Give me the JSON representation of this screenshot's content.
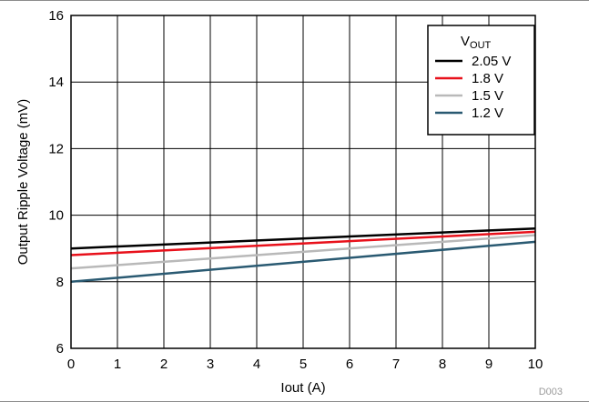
{
  "chart_data": {
    "type": "line",
    "xlabel": "Iout (A)",
    "ylabel": "Output Ripple Voltage (mV)",
    "xlim": [
      0,
      10
    ],
    "ylim": [
      6,
      16
    ],
    "xticks": [
      "0",
      "1",
      "2",
      "3",
      "4",
      "5",
      "6",
      "7",
      "8",
      "9",
      "10"
    ],
    "yticks": [
      "6",
      "8",
      "10",
      "12",
      "14",
      "16"
    ],
    "grid": true,
    "legend": {
      "title_main": "V",
      "title_sub": "OUT",
      "position": "top-right"
    },
    "series": [
      {
        "name": "2.05 V",
        "color": "#000000",
        "x": [
          0,
          10
        ],
        "y": [
          9.0,
          9.6
        ]
      },
      {
        "name": "1.8 V",
        "color": "#e8111b",
        "x": [
          0,
          10
        ],
        "y": [
          8.8,
          9.5
        ]
      },
      {
        "name": "1.5 V",
        "color": "#b9b9b9",
        "x": [
          0,
          10
        ],
        "y": [
          8.4,
          9.4
        ]
      },
      {
        "name": "1.2 V",
        "color": "#2a5a72",
        "x": [
          0,
          10
        ],
        "y": [
          8.0,
          9.2
        ]
      }
    ],
    "figure_id": "D003"
  }
}
